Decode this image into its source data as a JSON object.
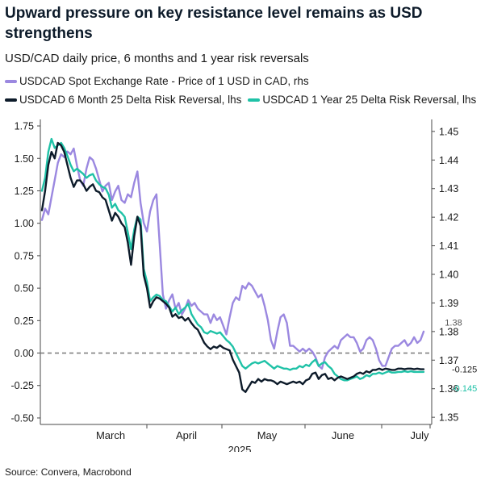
{
  "title": "Upward pressure on key resistance level remains as USD strengthens",
  "subtitle": "USD/CAD daily price, 6 months and 1 year risk reversals",
  "source": "Source: Convera, Macrobond",
  "colors": {
    "spot": "#9b88e0",
    "rr6m": "#0d1b2a",
    "rr1y": "#1fc2a7",
    "zero": "#808080",
    "axis": "#4a4a4a"
  },
  "chart_data": {
    "type": "line",
    "x_axis": {
      "tick_labels": [
        "March",
        "April",
        "May",
        "June",
        "July"
      ],
      "year_label": "2025"
    },
    "y_left": {
      "range": [
        -0.55,
        1.8
      ],
      "ticks": [
        "1.75",
        "1.50",
        "1.25",
        "1.00",
        "0.75",
        "0.50",
        "0.25",
        "0.00",
        "-0.25",
        "-0.50"
      ]
    },
    "y_right": {
      "range": [
        1.3475,
        1.4542
      ],
      "ticks": [
        "1.45",
        "1.44",
        "1.43",
        "1.42",
        "1.41",
        "1.40",
        "1.39",
        "1.38",
        "1.37",
        "1.36",
        "1.35"
      ]
    },
    "annotations": {
      "spot_last": "1.38",
      "rr6m_last": "-0.125",
      "rr1y_last": "-0.145"
    },
    "series": [
      {
        "name": "USDCAD Spot Exchange Rate - Price of 1 USD in CAD, rhs",
        "axis": "right",
        "color_key": "spot",
        "x": [
          0,
          1,
          2,
          3,
          4,
          5,
          6,
          7,
          8,
          9,
          10,
          11,
          12,
          13,
          14,
          15,
          16,
          17,
          18,
          19,
          20,
          21,
          22,
          23,
          24,
          25,
          26,
          27,
          28,
          29,
          30,
          31,
          32,
          33,
          34,
          35,
          36,
          37,
          38,
          39,
          40,
          41,
          42,
          43,
          44,
          45,
          46,
          47,
          48,
          49,
          50,
          51,
          52,
          53,
          54,
          55,
          56,
          57,
          58,
          59,
          60,
          61,
          62,
          63,
          64,
          65,
          66,
          67,
          68,
          69,
          70,
          71,
          72,
          73,
          74,
          75,
          76,
          77,
          78,
          79,
          80,
          81,
          82,
          83,
          84,
          85,
          86,
          87,
          88,
          89,
          90,
          91,
          92,
          93,
          94,
          95,
          96,
          97,
          98,
          99,
          100,
          101,
          102,
          103,
          104,
          105,
          106,
          107,
          108,
          109,
          110,
          111,
          112,
          113,
          114,
          115,
          116,
          117,
          118,
          119,
          120
        ],
        "values": [
          1.419,
          1.423,
          1.421,
          1.427,
          1.433,
          1.439,
          1.442,
          1.441,
          1.443,
          1.442,
          1.444,
          1.438,
          1.433,
          1.431,
          1.437,
          1.441,
          1.44,
          1.437,
          1.433,
          1.429,
          1.431,
          1.432,
          1.426,
          1.429,
          1.431,
          1.426,
          1.425,
          1.428,
          1.427,
          1.432,
          1.436,
          1.425,
          1.418,
          1.415,
          1.422,
          1.426,
          1.428,
          1.411,
          1.393,
          1.388,
          1.391,
          1.393,
          1.388,
          1.39,
          1.386,
          1.388,
          1.391,
          1.389,
          1.39,
          1.388,
          1.387,
          1.386,
          1.386,
          1.383,
          1.386,
          1.384,
          1.385,
          1.382,
          1.379,
          1.385,
          1.39,
          1.392,
          1.391,
          1.396,
          1.395,
          1.397,
          1.396,
          1.394,
          1.392,
          1.393,
          1.389,
          1.384,
          1.377,
          1.374,
          1.38,
          1.385,
          1.386,
          1.383,
          1.375,
          1.375,
          1.374,
          1.373,
          1.374,
          1.373,
          1.374,
          1.373,
          1.371,
          1.368,
          1.367,
          1.371,
          1.373,
          1.374,
          1.375,
          1.374,
          1.377,
          1.378,
          1.379,
          1.378,
          1.378,
          1.376,
          1.373,
          1.374,
          1.377,
          1.378,
          1.377,
          1.374,
          1.37,
          1.368,
          1.368,
          1.371,
          1.374,
          1.375,
          1.375,
          1.376,
          1.377,
          1.375,
          1.376,
          1.378,
          1.376,
          1.377,
          1.38
        ]
      },
      {
        "name": "USDCAD 6 Month 25 Delta Risk Reversal, lhs",
        "axis": "left",
        "color_key": "rr6m",
        "x": [
          0,
          1,
          2,
          3,
          4,
          5,
          6,
          7,
          8,
          9,
          10,
          11,
          12,
          13,
          14,
          15,
          16,
          17,
          18,
          19,
          20,
          21,
          22,
          23,
          24,
          25,
          26,
          27,
          28,
          29,
          30,
          31,
          32,
          33,
          34,
          35,
          36,
          37,
          38,
          39,
          40,
          41,
          42,
          43,
          44,
          45,
          46,
          47,
          48,
          49,
          50,
          51,
          52,
          53,
          54,
          55,
          56,
          57,
          58,
          59,
          60,
          61,
          62,
          63,
          64,
          65,
          66,
          67,
          68,
          69,
          70,
          71,
          72,
          73,
          74,
          75,
          76,
          77,
          78,
          79,
          80,
          81,
          82,
          83,
          84,
          85,
          86,
          87,
          88,
          89,
          90,
          91,
          92,
          93,
          94,
          95,
          96,
          97,
          98,
          99,
          100,
          101,
          102,
          103,
          104,
          105,
          106,
          107,
          108,
          109,
          110,
          111,
          112,
          113,
          114,
          115,
          116,
          117,
          118,
          119,
          120
        ],
        "values": [
          1.1,
          1.25,
          1.45,
          1.55,
          1.5,
          1.62,
          1.6,
          1.55,
          1.45,
          1.35,
          1.28,
          1.33,
          1.33,
          1.3,
          1.25,
          1.28,
          1.3,
          1.25,
          1.24,
          1.2,
          1.18,
          1.1,
          1.02,
          1.08,
          1.05,
          1.0,
          0.97,
          0.85,
          0.68,
          0.9,
          1.05,
          0.98,
          0.6,
          0.5,
          0.35,
          0.4,
          0.43,
          0.42,
          0.4,
          0.38,
          0.35,
          0.28,
          0.3,
          0.27,
          0.28,
          0.25,
          0.27,
          0.23,
          0.2,
          0.18,
          0.13,
          0.08,
          0.05,
          0.03,
          0.05,
          0.04,
          0.06,
          0.04,
          0.03,
          0.02,
          -0.05,
          -0.1,
          -0.15,
          -0.28,
          -0.3,
          -0.26,
          -0.22,
          -0.23,
          -0.2,
          -0.22,
          -0.2,
          -0.21,
          -0.21,
          -0.22,
          -0.24,
          -0.22,
          -0.23,
          -0.24,
          -0.23,
          -0.22,
          -0.23,
          -0.22,
          -0.24,
          -0.21,
          -0.2,
          -0.16,
          -0.15,
          -0.2,
          -0.17,
          -0.16,
          -0.2,
          -0.19,
          -0.21,
          -0.19,
          -0.18,
          -0.19,
          -0.2,
          -0.19,
          -0.18,
          -0.16,
          -0.15,
          -0.16,
          -0.14,
          -0.15,
          -0.13,
          -0.13,
          -0.12,
          -0.13,
          -0.12,
          -0.125,
          -0.13,
          -0.13,
          -0.12,
          -0.12,
          -0.125,
          -0.12,
          -0.12,
          -0.125,
          -0.12,
          -0.125,
          -0.125
        ]
      },
      {
        "name": "USDCAD 1 Year 25 Delta Risk Reversal, lhs",
        "axis": "left",
        "color_key": "rr1y",
        "x": [
          0,
          1,
          2,
          3,
          4,
          5,
          6,
          7,
          8,
          9,
          10,
          11,
          12,
          13,
          14,
          15,
          16,
          17,
          18,
          19,
          20,
          21,
          22,
          23,
          24,
          25,
          26,
          27,
          28,
          29,
          30,
          31,
          32,
          33,
          34,
          35,
          36,
          37,
          38,
          39,
          40,
          41,
          42,
          43,
          44,
          45,
          46,
          47,
          48,
          49,
          50,
          51,
          52,
          53,
          54,
          55,
          56,
          57,
          58,
          59,
          60,
          61,
          62,
          63,
          64,
          65,
          66,
          67,
          68,
          69,
          70,
          71,
          72,
          73,
          74,
          75,
          76,
          77,
          78,
          79,
          80,
          81,
          82,
          83,
          84,
          85,
          86,
          87,
          88,
          89,
          90,
          91,
          92,
          93,
          94,
          95,
          96,
          97,
          98,
          99,
          100,
          101,
          102,
          103,
          104,
          105,
          106,
          107,
          108,
          109,
          110,
          111,
          112,
          113,
          114,
          115,
          116,
          117,
          118,
          119,
          120
        ],
        "values": [
          1.25,
          1.35,
          1.55,
          1.65,
          1.58,
          1.6,
          1.62,
          1.58,
          1.52,
          1.45,
          1.4,
          1.42,
          1.4,
          1.38,
          1.35,
          1.37,
          1.38,
          1.33,
          1.3,
          1.28,
          1.27,
          1.22,
          1.12,
          1.15,
          1.1,
          1.08,
          1.05,
          0.93,
          0.8,
          0.95,
          1.05,
          1.03,
          0.65,
          0.55,
          0.4,
          0.43,
          0.45,
          0.44,
          0.41,
          0.4,
          0.36,
          0.32,
          0.35,
          0.3,
          0.33,
          0.35,
          0.38,
          0.3,
          0.26,
          0.22,
          0.2,
          0.16,
          0.15,
          0.17,
          0.16,
          0.15,
          0.16,
          0.13,
          0.1,
          0.08,
          0.05,
          0.0,
          -0.05,
          -0.1,
          -0.12,
          -0.1,
          -0.08,
          -0.07,
          -0.08,
          -0.07,
          -0.06,
          -0.08,
          -0.1,
          -0.12,
          -0.1,
          -0.11,
          -0.12,
          -0.12,
          -0.13,
          -0.12,
          -0.12,
          -0.1,
          -0.11,
          -0.09,
          -0.1,
          -0.07,
          -0.05,
          -0.1,
          -0.08,
          -0.07,
          -0.1,
          -0.12,
          -0.16,
          -0.18,
          -0.2,
          -0.21,
          -0.21,
          -0.2,
          -0.19,
          -0.18,
          -0.2,
          -0.19,
          -0.17,
          -0.18,
          -0.16,
          -0.16,
          -0.15,
          -0.16,
          -0.15,
          -0.14,
          -0.15,
          -0.15,
          -0.145,
          -0.145,
          -0.14,
          -0.145,
          -0.14,
          -0.145,
          -0.145,
          -0.145,
          -0.145
        ]
      }
    ]
  }
}
